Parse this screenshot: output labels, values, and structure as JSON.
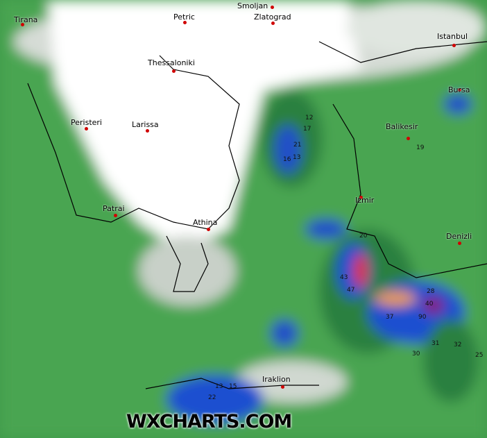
{
  "watermark": "WXCHARTS.COM",
  "colors": {
    "land_dry": "#ffffff",
    "light": "#c8d2c8",
    "low": "#5fb15a",
    "mid": "#2a8040",
    "high": "#1a4fd0",
    "very_high": "#e03020",
    "extreme": "#8a1070"
  },
  "cities": [
    {
      "name": "Tirana"
    },
    {
      "name": "Petric"
    },
    {
      "name": "Smoljan"
    },
    {
      "name": "Zlatograd"
    },
    {
      "name": "Istanbul"
    },
    {
      "name": "Thessaloniki"
    },
    {
      "name": "Bursa"
    },
    {
      "name": "Peristeri"
    },
    {
      "name": "Larissa"
    },
    {
      "name": "Balikesir"
    },
    {
      "name": "Izmir"
    },
    {
      "name": "Patrai"
    },
    {
      "name": "Athina"
    },
    {
      "name": "Denizli"
    },
    {
      "name": "Iraklion"
    }
  ],
  "values": [
    "17",
    "21",
    "13",
    "12",
    "16",
    "20",
    "43",
    "47",
    "37",
    "28",
    "90",
    "40",
    "30",
    "31",
    "32",
    "25",
    "22",
    "13",
    "15",
    "19"
  ]
}
